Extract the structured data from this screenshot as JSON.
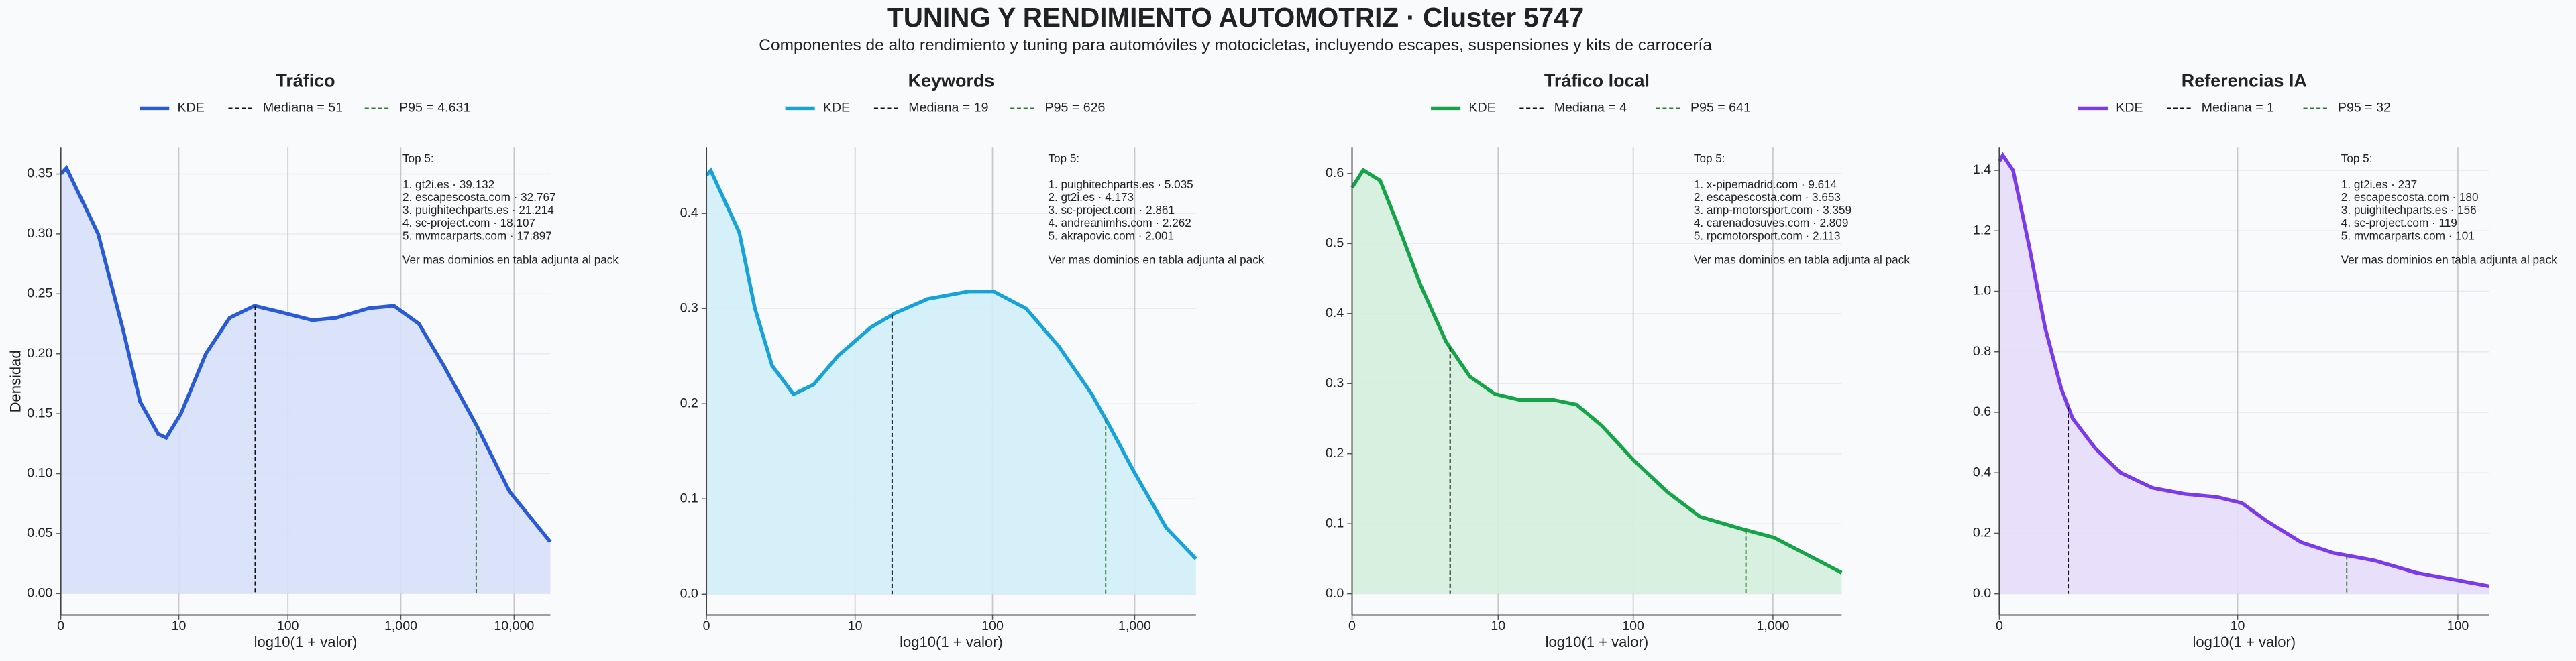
{
  "title": "TUNING Y RENDIMIENTO AUTOMOTRIZ · Cluster 5747",
  "subtitle": "Componentes de alto rendimiento y tuning para automóviles y motocicletas, incluyendo escapes, suspensiones y kits de carrocería",
  "chart_data": [
    {
      "type": "kde",
      "title": "Tráfico",
      "xlabel": "log10(1 + valor)",
      "ylabel": "Densidad",
      "x": [
        0,
        0.05,
        0.33,
        0.55,
        0.7,
        0.86,
        0.93,
        1.06,
        1.28,
        1.49,
        1.71,
        1.93,
        2.22,
        2.43,
        2.72,
        2.94,
        3.16,
        3.38,
        3.67,
        3.96,
        4.32
      ],
      "series": [
        {
          "name": "KDE",
          "color": "#2a5bd7",
          "fill": "#d6e0f8",
          "values": [
            0.35,
            0.355,
            0.3,
            0.22,
            0.16,
            0.133,
            0.13,
            0.15,
            0.2,
            0.23,
            0.24,
            0.235,
            0.228,
            0.23,
            0.238,
            0.24,
            0.225,
            0.19,
            0.14,
            0.085,
            0.043
          ]
        }
      ],
      "median": 51,
      "median_label": "Mediana = 51",
      "p95": 4631,
      "p95_label": "P95 = 4.631",
      "xlim": [
        0,
        4.32
      ],
      "ylim": [
        -0.018,
        0.372
      ],
      "xticks": [
        0,
        {
          "value": 1.0414,
          "label": "10"
        },
        {
          "value": 2.0043,
          "label": "100"
        },
        {
          "value": 3.0004,
          "label": "1,000"
        },
        {
          "value": 4.0,
          "label": "10,000"
        }
      ],
      "yticks": [
        {
          "value": 0,
          "label": "0.00"
        },
        0.05,
        {
          "value": 0.1,
          "label": "0.10"
        },
        0.15,
        {
          "value": 0.2,
          "label": "0.20"
        },
        0.25,
        {
          "value": 0.3,
          "label": "0.30"
        },
        0.35
      ],
      "grid": true,
      "top5": {
        "title": "Top 5:",
        "items": [
          "1. gt2i.es · 39.132",
          "2. escapescosta.com · 32.767",
          "3. puighitechparts.es · 21.214",
          "4. sc-project.com · 18.107",
          "5. mvmcarparts.com · 17.897"
        ],
        "note": "Ver mas dominios en tabla adjunta al pack"
      }
    },
    {
      "type": "kde",
      "title": "Keywords",
      "xlabel": "log10(1 + valor)",
      "x": [
        0,
        0.03,
        0.23,
        0.34,
        0.46,
        0.61,
        0.75,
        0.92,
        1.15,
        1.32,
        1.55,
        1.84,
        2.01,
        2.24,
        2.47,
        2.7,
        2.83,
        2.99,
        3.22,
        3.43
      ],
      "series": [
        {
          "name": "KDE",
          "color": "#17a2d8",
          "fill": "#d2eef9",
          "values": [
            0.44,
            0.445,
            0.38,
            0.3,
            0.24,
            0.21,
            0.22,
            0.25,
            0.28,
            0.295,
            0.31,
            0.318,
            0.318,
            0.3,
            0.26,
            0.21,
            0.175,
            0.13,
            0.07,
            0.037
          ]
        }
      ],
      "median": 19,
      "median_label": "Mediana = 19",
      "p95": 626,
      "p95_label": "P95 = 626",
      "xlim": [
        0,
        3.43
      ],
      "ylim": [
        -0.022,
        0.469
      ],
      "xticks": [
        0,
        {
          "value": 1.0414,
          "label": "10"
        },
        {
          "value": 2.0043,
          "label": "100"
        },
        {
          "value": 3.0004,
          "label": "1,000"
        }
      ],
      "yticks": [
        {
          "value": 0,
          "label": "0.0"
        },
        0.1,
        0.2,
        0.3,
        0.4
      ],
      "grid": true,
      "top5": {
        "title": "Top 5:",
        "items": [
          "1. puighitechparts.es · 5.035",
          "2. gt2i.es · 4.173",
          "3. sc-project.com · 2.861",
          "4. andreanimhs.com · 2.262",
          "5. akrapovic.com · 2.001"
        ],
        "note": "Ver mas dominios en tabla adjunta al pack"
      }
    },
    {
      "type": "kde",
      "title": "Tráfico local",
      "xlabel": "log10(1 + valor)",
      "x": [
        0,
        0.08,
        0.2,
        0.32,
        0.49,
        0.67,
        0.84,
        1.02,
        1.19,
        1.43,
        1.6,
        1.78,
        2.01,
        2.25,
        2.48,
        2.77,
        3.01,
        3.25,
        3.49
      ],
      "series": [
        {
          "name": "KDE",
          "color": "#16a34a",
          "fill": "#d4eedb",
          "values": [
            0.58,
            0.605,
            0.59,
            0.53,
            0.44,
            0.36,
            0.31,
            0.285,
            0.277,
            0.277,
            0.27,
            0.24,
            0.19,
            0.145,
            0.11,
            0.093,
            0.08,
            0.055,
            0.03
          ]
        }
      ],
      "median": 4,
      "median_label": "Mediana = 4",
      "p95": 641,
      "p95_label": "P95 = 641",
      "xlim": [
        0,
        3.49
      ],
      "ylim": [
        -0.0305,
        0.637
      ],
      "xticks": [
        0,
        {
          "value": 1.0414,
          "label": "10"
        },
        {
          "value": 2.0043,
          "label": "100"
        },
        {
          "value": 3.0004,
          "label": "1,000"
        }
      ],
      "yticks": [
        {
          "value": 0,
          "label": "0.0"
        },
        0.1,
        0.2,
        0.3,
        0.4,
        0.5,
        0.6
      ],
      "grid": true,
      "top5": {
        "title": "Top 5:",
        "items": [
          "1. x-pipemadrid.com · 9.614",
          "2. escapescosta.com · 3.653",
          "3. amp-motorsport.com · 3.359",
          "4. carenadosuves.com · 2.809",
          "5. rpcmotorsport.com · 2.113"
        ],
        "note": "Ver mas dominios en tabla adjunta al pack"
      }
    },
    {
      "type": "kde",
      "title": "Referencias IA",
      "xlabel": "log10(1 + valor)",
      "x": [
        0,
        0.015,
        0.06,
        0.13,
        0.2,
        0.27,
        0.32,
        0.42,
        0.53,
        0.67,
        0.81,
        0.95,
        1.06,
        1.17,
        1.32,
        1.46,
        1.64,
        1.82,
        2.0,
        2.14
      ],
      "series": [
        {
          "name": "KDE",
          "color": "#7c3aed",
          "fill": "#e5dcfb",
          "values": [
            1.43,
            1.45,
            1.4,
            1.15,
            0.88,
            0.68,
            0.58,
            0.48,
            0.4,
            0.35,
            0.33,
            0.32,
            0.3,
            0.24,
            0.17,
            0.135,
            0.11,
            0.07,
            0.045,
            0.025
          ]
        }
      ],
      "median": 1,
      "median_label": "Mediana = 1",
      "p95": 32,
      "p95_label": "P95 = 32",
      "xlim": [
        0,
        2.14
      ],
      "ylim": [
        -0.0705,
        1.475
      ],
      "xticks": [
        0,
        {
          "value": 1.0414,
          "label": "10"
        },
        {
          "value": 2.0043,
          "label": "100"
        }
      ],
      "yticks": [
        {
          "value": 0,
          "label": "0.0"
        },
        0.2,
        0.4,
        0.6,
        0.8,
        {
          "value": 1,
          "label": "1.0"
        },
        1.2,
        1.4
      ],
      "grid": true,
      "top5": {
        "title": "Top 5:",
        "items": [
          "1. gt2i.es · 237",
          "2. escapescosta.com · 180",
          "3. puighitechparts.es · 156",
          "4. sc-project.com · 119",
          "5. mvmcarparts.com · 101"
        ],
        "note": "Ver mas dominios en tabla adjunta al pack"
      }
    }
  ]
}
